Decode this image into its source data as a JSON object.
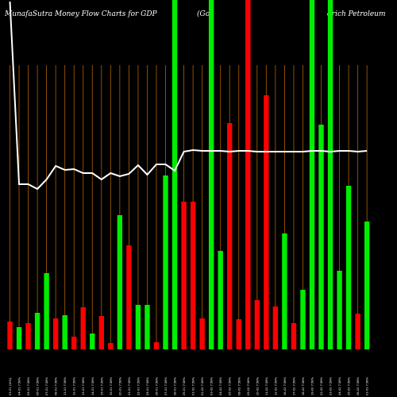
{
  "chart_data": {
    "type": "bar",
    "title_left": "MunafaSutra  Money Flow  Charts for GDP",
    "title_mid": "(Goo",
    "title_right": "drich Petroleum",
    "colors": {
      "up": "#00ee00",
      "down": "#ff0000",
      "line": "#ffffff",
      "grid": "#b06000",
      "background": "#000000"
    },
    "ylim": [
      0,
      440
    ],
    "categories": [
      "01 Feb 2021",
      "02 Feb 2021",
      "03 Feb 2021",
      "04 Feb 2021",
      "05 Feb 2021",
      "08 Feb 2021",
      "09 Feb 2021",
      "10 Feb 2021",
      "11 Feb 2021",
      "12 Feb 2021",
      "16 Feb 2021",
      "17 Feb 2021",
      "18 Feb 2021",
      "19 Feb 2021",
      "22 Feb 2021",
      "23 Feb 2021",
      "24 Feb 2021",
      "25 Feb 2021",
      "26 Feb 2021",
      "01 Mar 2021",
      "02 Mar 2021",
      "03 Mar 2021",
      "04 Mar 2021",
      "05 Mar 2021",
      "08 Mar 2021",
      "09 Mar 2021",
      "10 Mar 2021",
      "11 Mar 2021",
      "12 Mar 2021",
      "15 Mar 2021",
      "16 Mar 2021",
      "17 Mar 2021",
      "18 Mar 2021",
      "19 Mar 2021",
      "22 Mar 2021",
      "23 Mar 2021",
      "24 Mar 2021",
      "25 Mar 2021",
      "26 Mar 2021",
      "29 Mar 2021"
    ],
    "x_tick_labels": [
      "03-01 (10%)",
      "04-01 7.58%",
      "05-01 7.58%",
      "06-01 7.58%",
      "07-01 7.58%",
      "08-01 7.58%",
      "11-01 7.58%",
      "12-01 7.58%",
      "13-01 7.58%",
      "14-01 7.58%",
      "15-01 7.58%",
      "19-01 7.58%",
      "20-01 7.58%",
      "21-01 7.58%",
      "22-01 7.58%",
      "25-01 7.58%",
      "26-01 7.58%",
      "27-01 7.58%",
      "28-01 7.58%",
      "29-01 7.58%",
      "01-02 7.58%",
      "02-02 7.58%",
      "03-02 7.58%",
      "04-02 7.58%",
      "05-02 7.58%",
      "08-02 7.58%",
      "09-02 7.58%",
      "10-02 7.58%",
      "11-02 7.58%",
      "12-02 7.58%",
      "16-02 7.58%",
      "17-02 7.58%",
      "18-02 7.58%",
      "19-02 7.58%",
      "22-02 7.58%",
      "23-02 7.58%",
      "24-02 7.58%",
      "25-02 7.58%",
      "26-02 7.58%",
      "01-03 7.58%"
    ],
    "bars": [
      {
        "value": 35,
        "dir": "down"
      },
      {
        "value": 28,
        "dir": "up"
      },
      {
        "value": 33,
        "dir": "down"
      },
      {
        "value": 46,
        "dir": "up"
      },
      {
        "value": 96,
        "dir": "up"
      },
      {
        "value": 39,
        "dir": "down"
      },
      {
        "value": 43,
        "dir": "up"
      },
      {
        "value": 16,
        "dir": "down"
      },
      {
        "value": 53,
        "dir": "down"
      },
      {
        "value": 20,
        "dir": "up"
      },
      {
        "value": 42,
        "dir": "down"
      },
      {
        "value": 8,
        "dir": "down"
      },
      {
        "value": 169,
        "dir": "up"
      },
      {
        "value": 131,
        "dir": "down"
      },
      {
        "value": 56,
        "dir": "up"
      },
      {
        "value": 56,
        "dir": "up"
      },
      {
        "value": 9,
        "dir": "down"
      },
      {
        "value": 219,
        "dir": "up"
      },
      {
        "value": 440,
        "dir": "up"
      },
      {
        "value": 186,
        "dir": "down"
      },
      {
        "value": 186,
        "dir": "down"
      },
      {
        "value": 39,
        "dir": "down"
      },
      {
        "value": 440,
        "dir": "up"
      },
      {
        "value": 124,
        "dir": "up"
      },
      {
        "value": 285,
        "dir": "down"
      },
      {
        "value": 38,
        "dir": "down"
      },
      {
        "value": 440,
        "dir": "down"
      },
      {
        "value": 62,
        "dir": "down"
      },
      {
        "value": 320,
        "dir": "down"
      },
      {
        "value": 54,
        "dir": "down"
      },
      {
        "value": 146,
        "dir": "up"
      },
      {
        "value": 33,
        "dir": "down"
      },
      {
        "value": 75,
        "dir": "up"
      },
      {
        "value": 440,
        "dir": "up"
      },
      {
        "value": 283,
        "dir": "up"
      },
      {
        "value": 440,
        "dir": "up"
      },
      {
        "value": 99,
        "dir": "up"
      },
      {
        "value": 206,
        "dir": "up"
      },
      {
        "value": 45,
        "dir": "down"
      },
      {
        "value": 161,
        "dir": "up"
      }
    ],
    "line_values": [
      438,
      208,
      208,
      202,
      214,
      231,
      226,
      227,
      222,
      222,
      214,
      222,
      218,
      221,
      232,
      220,
      233,
      233,
      225,
      249,
      251,
      250,
      250,
      250,
      249,
      250,
      250,
      249,
      249,
      249,
      249,
      249,
      249,
      250,
      250,
      249,
      250,
      250,
      249,
      250
    ]
  }
}
